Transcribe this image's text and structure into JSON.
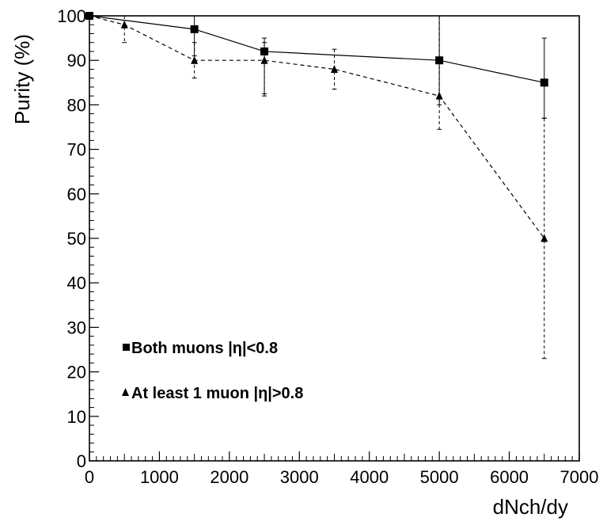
{
  "chart_data": {
    "type": "line",
    "title": "",
    "xlabel": "dNch/dy",
    "ylabel": "Purity (%)",
    "xlim": [
      0,
      7000
    ],
    "ylim": [
      0,
      100
    ],
    "x_ticks": [
      0,
      1000,
      2000,
      3000,
      4000,
      5000,
      6000,
      7000
    ],
    "y_ticks": [
      0,
      10,
      20,
      30,
      40,
      50,
      60,
      70,
      80,
      90,
      100
    ],
    "grid": false,
    "legend_position": "bottom-left",
    "series": [
      {
        "name": "Both muons |η|<0.8",
        "marker": "square",
        "line": "solid",
        "x": [
          0,
          1500,
          2500,
          5000,
          6500
        ],
        "y": [
          100,
          97,
          92,
          90,
          85
        ],
        "err_low": [
          0,
          6,
          10,
          10,
          8
        ],
        "err_high": [
          0,
          3,
          3,
          10,
          10
        ]
      },
      {
        "name": "At least 1 muon |η|>0.8",
        "marker": "triangle",
        "line": "dashed",
        "x": [
          0,
          500,
          1500,
          2500,
          3500,
          5000,
          6500
        ],
        "y": [
          100,
          98,
          90,
          90,
          88,
          82,
          50
        ],
        "err_low": [
          0,
          4,
          4,
          7.5,
          4.5,
          7.5,
          27
        ],
        "err_high": [
          0,
          2,
          4,
          4,
          4.5,
          18,
          27
        ]
      }
    ]
  }
}
